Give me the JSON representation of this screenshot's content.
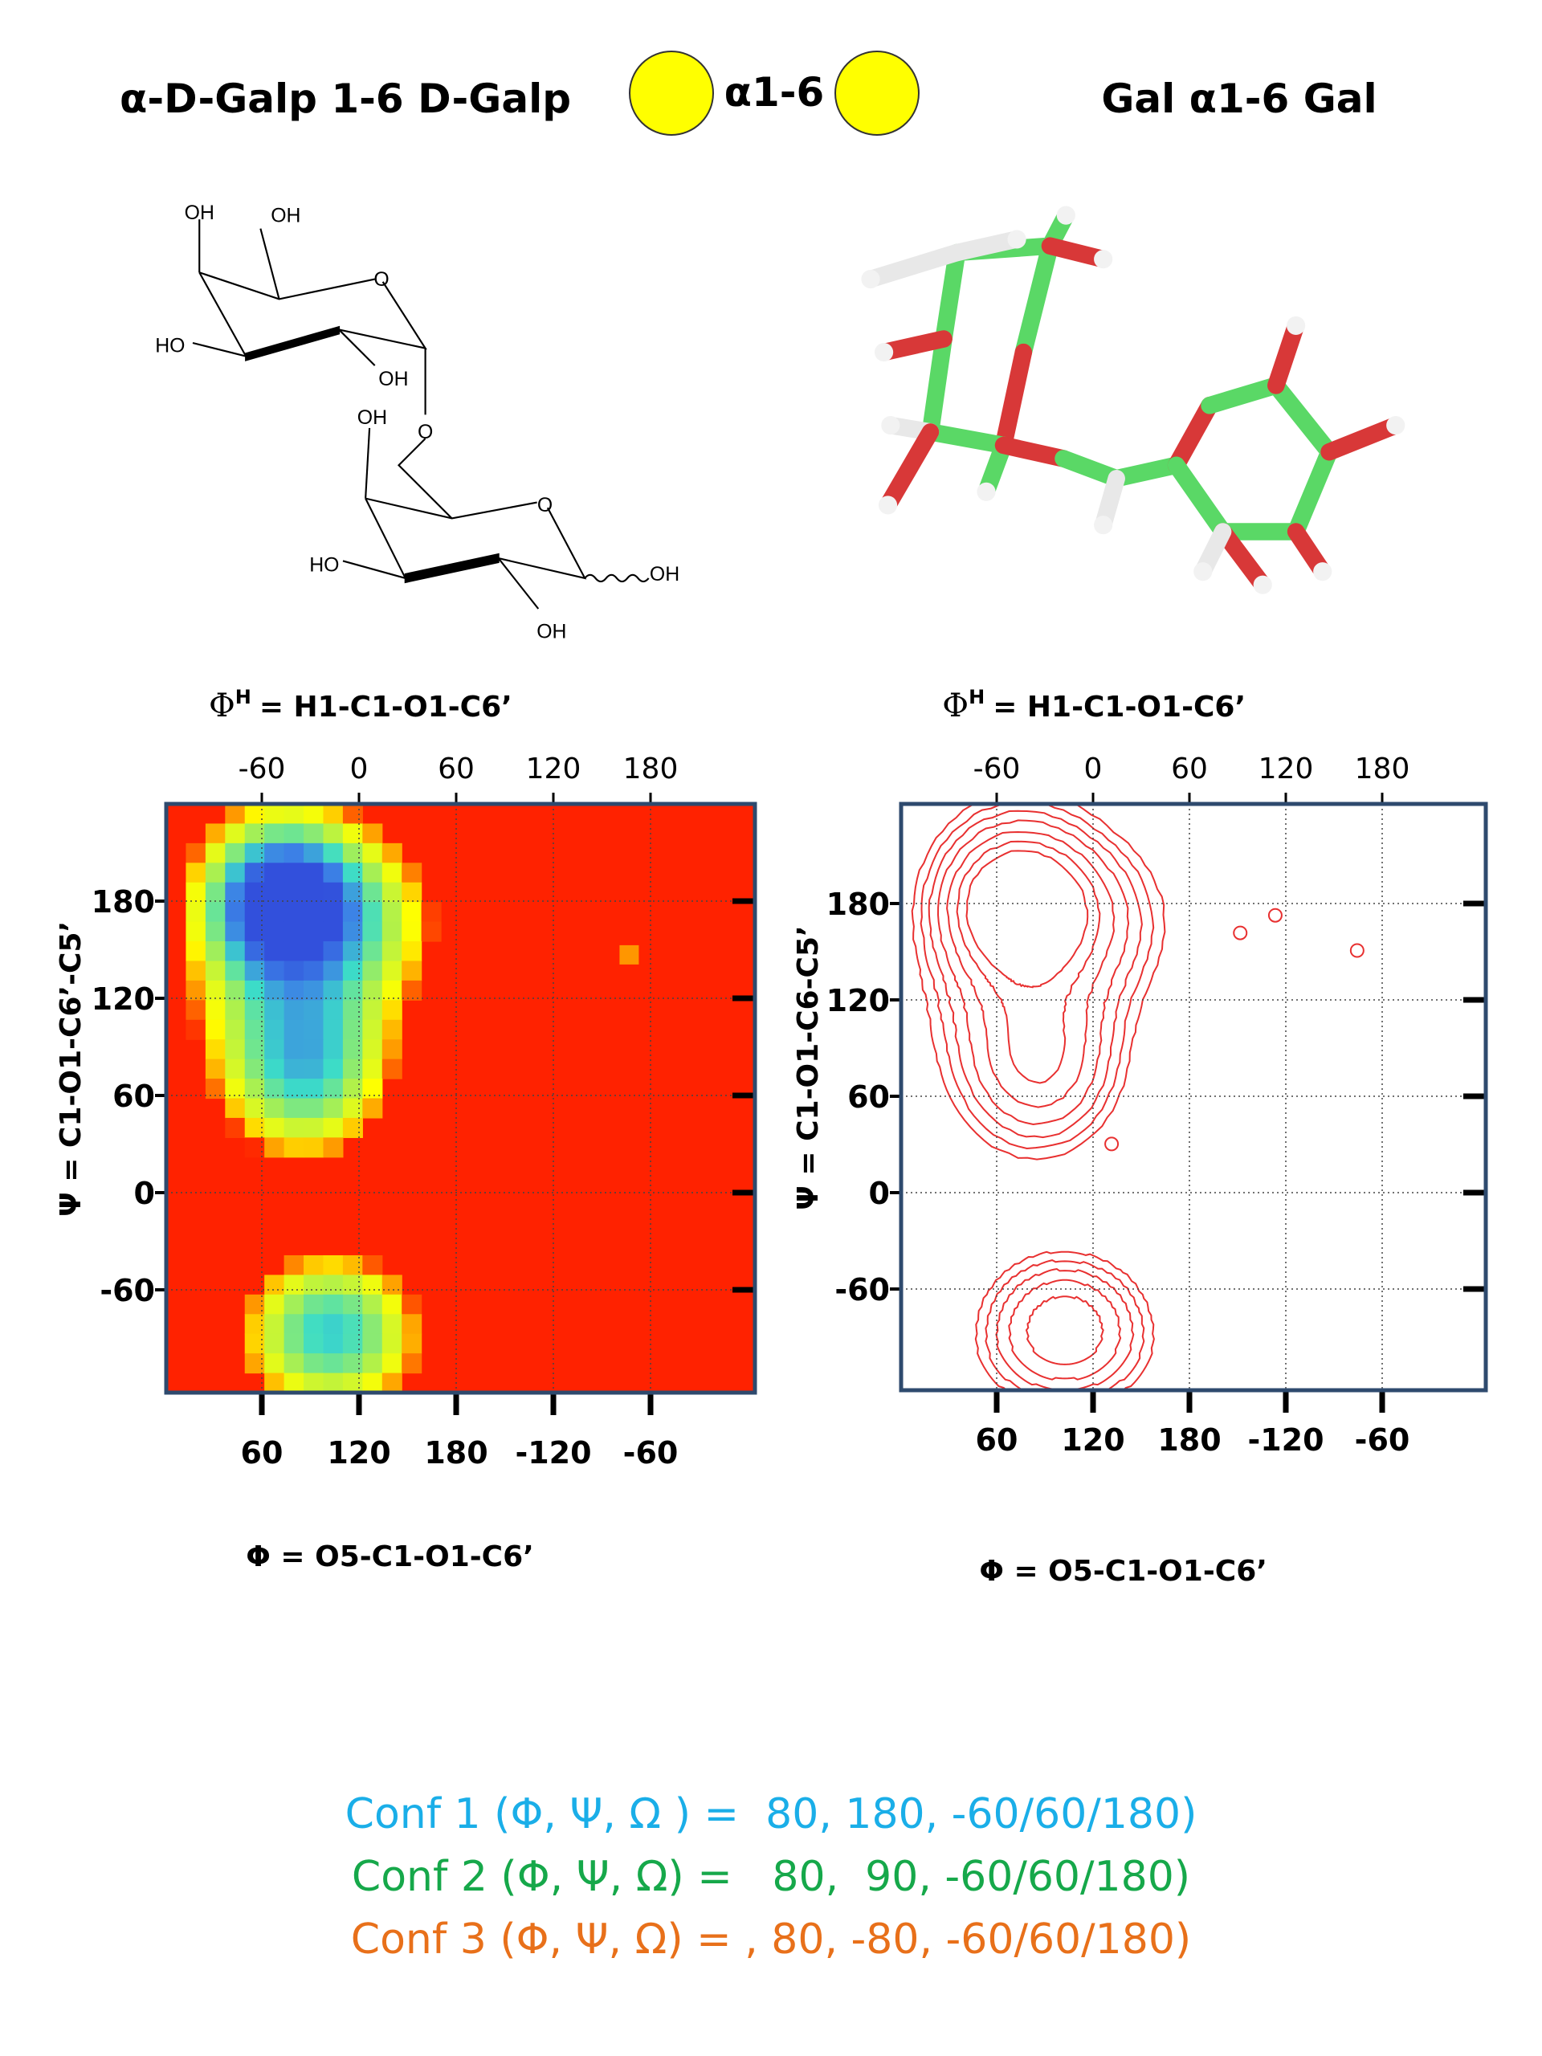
{
  "header": {
    "left_title": "α-D-Galp 1-6 D-Galp",
    "linkage": "α1-6",
    "right_title": "Gal α1-6 Gal"
  },
  "structure": {
    "labels": [
      "OH",
      "OH",
      "O",
      "HO",
      "OH",
      "O",
      "OH",
      "O",
      "HO",
      "OH",
      "OH"
    ]
  },
  "panels": [
    {
      "top_axis": {
        "symbol": "Φ",
        "superscript": "H",
        "label": "= H1-C1-O1-C6’"
      },
      "top_ticks": [
        -60,
        0,
        60,
        120,
        180
      ],
      "bottom_ticks": [
        60,
        120,
        180,
        -120,
        -60
      ],
      "left_ticks": [
        180,
        120,
        60,
        0,
        -60
      ],
      "y_label": "Ψ = C1-O1-C6’-C5’",
      "x_label": "Φ = O5-C1-O1-C6’"
    },
    {
      "top_axis": {
        "symbol": "Φ",
        "superscript": "H",
        "label": "= H1-C1-O1-C6’"
      },
      "top_ticks": [
        -60,
        0,
        60,
        120,
        180
      ],
      "bottom_ticks": [
        60,
        120,
        180,
        -120,
        -60
      ],
      "left_ticks": [
        180,
        120,
        60,
        0,
        -60
      ],
      "y_label": "Ψ = C1-O1-C6-C5’",
      "x_label": "Φ = O5-C1-O1-C6’"
    }
  ],
  "conformations": [
    {
      "label": "Conf 1 (Φ, Ψ, Ω ) =  80, 180, -60/60/180)",
      "color": "#1aaee8"
    },
    {
      "label": "Conf 2 (Φ, Ψ, Ω) =   80,  90, -60/60/180)",
      "color": "#16a84a"
    },
    {
      "label": "Conf 3 (Φ, Ψ, Ω) = , 80, -80, -60/60/180)",
      "color": "#e8701a"
    }
  ]
}
